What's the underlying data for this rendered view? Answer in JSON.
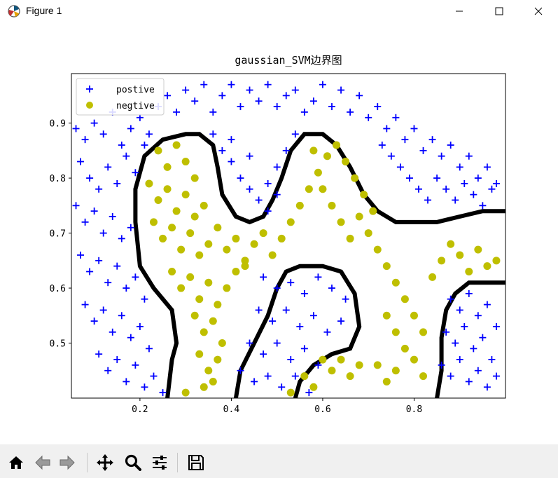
{
  "window": {
    "title": "Figure 1",
    "minimize_icon": "minimize-icon",
    "maximize_icon": "maximize-icon",
    "close_icon": "close-icon"
  },
  "toolbar": {
    "buttons": [
      "home-icon",
      "back-arrow-icon",
      "forward-arrow-icon",
      "pan-icon",
      "zoom-icon",
      "configure-subplots-icon",
      "save-icon"
    ]
  },
  "colors": {
    "positive": "#0000ff",
    "negative": "#bfbf00",
    "boundary": "#000000"
  },
  "chart_data": {
    "type": "scatter",
    "title": "gaussian_SVM边界图",
    "xlabel": "",
    "ylabel": "",
    "xlim": [
      0.05,
      1.0
    ],
    "ylim": [
      0.4,
      0.99
    ],
    "xticks": [
      "0.2",
      "0.4",
      "0.6",
      "0.8"
    ],
    "yticks": [
      "0.5",
      "0.6",
      "0.7",
      "0.8",
      "0.9"
    ],
    "xtick_values": [
      0.2,
      0.4,
      0.6,
      0.8
    ],
    "ytick_values": [
      0.5,
      0.6,
      0.7,
      0.8,
      0.9
    ],
    "legend": {
      "position": "top-left",
      "entries": [
        {
          "label": "postive",
          "marker": "plus"
        },
        {
          "label": "negtive",
          "marker": "circle"
        }
      ]
    },
    "grid": false,
    "series": [
      {
        "name": "postive",
        "marker": "plus",
        "points": [
          [
            0.06,
            0.89
          ],
          [
            0.08,
            0.87
          ],
          [
            0.1,
            0.9
          ],
          [
            0.12,
            0.88
          ],
          [
            0.14,
            0.92
          ],
          [
            0.16,
            0.86
          ],
          [
            0.18,
            0.89
          ],
          [
            0.2,
            0.91
          ],
          [
            0.22,
            0.88
          ],
          [
            0.24,
            0.93
          ],
          [
            0.26,
            0.95
          ],
          [
            0.28,
            0.92
          ],
          [
            0.3,
            0.96
          ],
          [
            0.32,
            0.94
          ],
          [
            0.34,
            0.97
          ],
          [
            0.36,
            0.92
          ],
          [
            0.38,
            0.95
          ],
          [
            0.4,
            0.97
          ],
          [
            0.42,
            0.93
          ],
          [
            0.44,
            0.96
          ],
          [
            0.46,
            0.94
          ],
          [
            0.48,
            0.97
          ],
          [
            0.5,
            0.93
          ],
          [
            0.52,
            0.95
          ],
          [
            0.54,
            0.96
          ],
          [
            0.56,
            0.92
          ],
          [
            0.58,
            0.94
          ],
          [
            0.6,
            0.97
          ],
          [
            0.62,
            0.93
          ],
          [
            0.64,
            0.96
          ],
          [
            0.66,
            0.92
          ],
          [
            0.68,
            0.95
          ],
          [
            0.7,
            0.91
          ],
          [
            0.72,
            0.93
          ],
          [
            0.74,
            0.89
          ],
          [
            0.76,
            0.91
          ],
          [
            0.78,
            0.87
          ],
          [
            0.8,
            0.89
          ],
          [
            0.82,
            0.85
          ],
          [
            0.84,
            0.87
          ],
          [
            0.86,
            0.84
          ],
          [
            0.88,
            0.86
          ],
          [
            0.9,
            0.82
          ],
          [
            0.92,
            0.84
          ],
          [
            0.94,
            0.8
          ],
          [
            0.96,
            0.82
          ],
          [
            0.98,
            0.79
          ],
          [
            0.07,
            0.83
          ],
          [
            0.09,
            0.8
          ],
          [
            0.11,
            0.78
          ],
          [
            0.13,
            0.82
          ],
          [
            0.15,
            0.79
          ],
          [
            0.17,
            0.84
          ],
          [
            0.19,
            0.81
          ],
          [
            0.21,
            0.86
          ],
          [
            0.06,
            0.75
          ],
          [
            0.08,
            0.72
          ],
          [
            0.1,
            0.74
          ],
          [
            0.12,
            0.7
          ],
          [
            0.14,
            0.73
          ],
          [
            0.16,
            0.69
          ],
          [
            0.18,
            0.71
          ],
          [
            0.07,
            0.66
          ],
          [
            0.09,
            0.63
          ],
          [
            0.11,
            0.65
          ],
          [
            0.13,
            0.61
          ],
          [
            0.15,
            0.64
          ],
          [
            0.17,
            0.6
          ],
          [
            0.19,
            0.62
          ],
          [
            0.21,
            0.58
          ],
          [
            0.08,
            0.57
          ],
          [
            0.1,
            0.54
          ],
          [
            0.12,
            0.56
          ],
          [
            0.14,
            0.52
          ],
          [
            0.16,
            0.55
          ],
          [
            0.18,
            0.51
          ],
          [
            0.2,
            0.53
          ],
          [
            0.22,
            0.49
          ],
          [
            0.11,
            0.48
          ],
          [
            0.13,
            0.45
          ],
          [
            0.15,
            0.47
          ],
          [
            0.17,
            0.43
          ],
          [
            0.19,
            0.46
          ],
          [
            0.21,
            0.42
          ],
          [
            0.23,
            0.44
          ],
          [
            0.25,
            0.41
          ],
          [
            0.36,
            0.88
          ],
          [
            0.38,
            0.85
          ],
          [
            0.4,
            0.83
          ],
          [
            0.42,
            0.8
          ],
          [
            0.44,
            0.78
          ],
          [
            0.46,
            0.76
          ],
          [
            0.48,
            0.79
          ],
          [
            0.5,
            0.82
          ],
          [
            0.52,
            0.85
          ],
          [
            0.54,
            0.88
          ],
          [
            0.4,
            0.87
          ],
          [
            0.44,
            0.84
          ],
          [
            0.48,
            0.74
          ],
          [
            0.5,
            0.77
          ],
          [
            0.47,
            0.62
          ],
          [
            0.5,
            0.6
          ],
          [
            0.53,
            0.61
          ],
          [
            0.56,
            0.59
          ],
          [
            0.59,
            0.62
          ],
          [
            0.62,
            0.6
          ],
          [
            0.65,
            0.58
          ],
          [
            0.46,
            0.56
          ],
          [
            0.49,
            0.54
          ],
          [
            0.52,
            0.56
          ],
          [
            0.55,
            0.53
          ],
          [
            0.58,
            0.55
          ],
          [
            0.61,
            0.52
          ],
          [
            0.64,
            0.54
          ],
          [
            0.44,
            0.5
          ],
          [
            0.47,
            0.48
          ],
          [
            0.5,
            0.5
          ],
          [
            0.53,
            0.47
          ],
          [
            0.56,
            0.49
          ],
          [
            0.59,
            0.46
          ],
          [
            0.42,
            0.45
          ],
          [
            0.45,
            0.43
          ],
          [
            0.48,
            0.44
          ],
          [
            0.51,
            0.42
          ],
          [
            0.54,
            0.44
          ],
          [
            0.57,
            0.41
          ],
          [
            0.88,
            0.58
          ],
          [
            0.9,
            0.56
          ],
          [
            0.92,
            0.59
          ],
          [
            0.94,
            0.55
          ],
          [
            0.96,
            0.57
          ],
          [
            0.98,
            0.53
          ],
          [
            0.87,
            0.52
          ],
          [
            0.89,
            0.5
          ],
          [
            0.91,
            0.53
          ],
          [
            0.93,
            0.49
          ],
          [
            0.95,
            0.51
          ],
          [
            0.97,
            0.47
          ],
          [
            0.86,
            0.46
          ],
          [
            0.88,
            0.44
          ],
          [
            0.9,
            0.47
          ],
          [
            0.92,
            0.43
          ],
          [
            0.94,
            0.45
          ],
          [
            0.96,
            0.42
          ],
          [
            0.98,
            0.44
          ],
          [
            0.73,
            0.86
          ],
          [
            0.75,
            0.84
          ],
          [
            0.77,
            0.82
          ],
          [
            0.79,
            0.8
          ],
          [
            0.81,
            0.78
          ],
          [
            0.83,
            0.76
          ],
          [
            0.85,
            0.8
          ],
          [
            0.87,
            0.78
          ],
          [
            0.89,
            0.76
          ],
          [
            0.91,
            0.79
          ],
          [
            0.93,
            0.77
          ],
          [
            0.95,
            0.75
          ],
          [
            0.97,
            0.78
          ]
        ]
      },
      {
        "name": "negtive",
        "marker": "circle",
        "points": [
          [
            0.24,
            0.85
          ],
          [
            0.26,
            0.82
          ],
          [
            0.28,
            0.86
          ],
          [
            0.3,
            0.83
          ],
          [
            0.32,
            0.8
          ],
          [
            0.22,
            0.79
          ],
          [
            0.24,
            0.76
          ],
          [
            0.26,
            0.78
          ],
          [
            0.28,
            0.74
          ],
          [
            0.3,
            0.77
          ],
          [
            0.32,
            0.73
          ],
          [
            0.34,
            0.75
          ],
          [
            0.23,
            0.72
          ],
          [
            0.25,
            0.69
          ],
          [
            0.27,
            0.71
          ],
          [
            0.29,
            0.67
          ],
          [
            0.31,
            0.7
          ],
          [
            0.33,
            0.66
          ],
          [
            0.35,
            0.68
          ],
          [
            0.37,
            0.71
          ],
          [
            0.39,
            0.67
          ],
          [
            0.41,
            0.69
          ],
          [
            0.43,
            0.65
          ],
          [
            0.45,
            0.68
          ],
          [
            0.47,
            0.7
          ],
          [
            0.49,
            0.66
          ],
          [
            0.51,
            0.69
          ],
          [
            0.53,
            0.72
          ],
          [
            0.55,
            0.75
          ],
          [
            0.57,
            0.78
          ],
          [
            0.59,
            0.81
          ],
          [
            0.61,
            0.84
          ],
          [
            0.63,
            0.86
          ],
          [
            0.65,
            0.83
          ],
          [
            0.67,
            0.8
          ],
          [
            0.69,
            0.77
          ],
          [
            0.71,
            0.74
          ],
          [
            0.58,
            0.85
          ],
          [
            0.6,
            0.78
          ],
          [
            0.62,
            0.75
          ],
          [
            0.64,
            0.72
          ],
          [
            0.66,
            0.69
          ],
          [
            0.68,
            0.73
          ],
          [
            0.7,
            0.7
          ],
          [
            0.72,
            0.67
          ],
          [
            0.74,
            0.64
          ],
          [
            0.76,
            0.61
          ],
          [
            0.78,
            0.58
          ],
          [
            0.8,
            0.55
          ],
          [
            0.82,
            0.52
          ],
          [
            0.84,
            0.62
          ],
          [
            0.86,
            0.65
          ],
          [
            0.88,
            0.68
          ],
          [
            0.9,
            0.66
          ],
          [
            0.92,
            0.63
          ],
          [
            0.94,
            0.67
          ],
          [
            0.96,
            0.64
          ],
          [
            0.98,
            0.65
          ],
          [
            0.27,
            0.63
          ],
          [
            0.29,
            0.6
          ],
          [
            0.31,
            0.62
          ],
          [
            0.33,
            0.58
          ],
          [
            0.35,
            0.61
          ],
          [
            0.37,
            0.57
          ],
          [
            0.39,
            0.6
          ],
          [
            0.41,
            0.63
          ],
          [
            0.43,
            0.64
          ],
          [
            0.32,
            0.55
          ],
          [
            0.34,
            0.52
          ],
          [
            0.36,
            0.54
          ],
          [
            0.38,
            0.5
          ],
          [
            0.33,
            0.48
          ],
          [
            0.35,
            0.45
          ],
          [
            0.37,
            0.47
          ],
          [
            0.34,
            0.42
          ],
          [
            0.36,
            0.43
          ],
          [
            0.3,
            0.41
          ],
          [
            0.74,
            0.55
          ],
          [
            0.76,
            0.52
          ],
          [
            0.78,
            0.49
          ],
          [
            0.72,
            0.46
          ],
          [
            0.74,
            0.43
          ],
          [
            0.76,
            0.45
          ],
          [
            0.8,
            0.47
          ],
          [
            0.82,
            0.44
          ],
          [
            0.6,
            0.47
          ],
          [
            0.62,
            0.45
          ],
          [
            0.64,
            0.47
          ],
          [
            0.66,
            0.44
          ],
          [
            0.68,
            0.46
          ],
          [
            0.56,
            0.44
          ],
          [
            0.58,
            0.42
          ],
          [
            0.53,
            0.41
          ]
        ]
      }
    ],
    "boundary": [
      [
        [
          0.26,
          0.4
        ],
        [
          0.27,
          0.47
        ],
        [
          0.28,
          0.5
        ],
        [
          0.27,
          0.56
        ],
        [
          0.23,
          0.6
        ],
        [
          0.2,
          0.64
        ],
        [
          0.19,
          0.72
        ],
        [
          0.19,
          0.78
        ],
        [
          0.21,
          0.84
        ],
        [
          0.25,
          0.87
        ],
        [
          0.3,
          0.88
        ],
        [
          0.33,
          0.88
        ],
        [
          0.36,
          0.86
        ],
        [
          0.37,
          0.82
        ],
        [
          0.38,
          0.77
        ],
        [
          0.41,
          0.73
        ],
        [
          0.44,
          0.72
        ],
        [
          0.47,
          0.73
        ],
        [
          0.49,
          0.76
        ],
        [
          0.51,
          0.8
        ],
        [
          0.53,
          0.85
        ],
        [
          0.56,
          0.88
        ],
        [
          0.6,
          0.88
        ],
        [
          0.63,
          0.86
        ],
        [
          0.66,
          0.82
        ],
        [
          0.69,
          0.77
        ],
        [
          0.72,
          0.74
        ],
        [
          0.76,
          0.72
        ],
        [
          0.8,
          0.72
        ],
        [
          0.85,
          0.72
        ],
        [
          0.9,
          0.73
        ],
        [
          0.95,
          0.74
        ],
        [
          1.0,
          0.74
        ]
      ],
      [
        [
          0.41,
          0.4
        ],
        [
          0.42,
          0.45
        ],
        [
          0.45,
          0.5
        ],
        [
          0.48,
          0.55
        ],
        [
          0.5,
          0.6
        ],
        [
          0.52,
          0.63
        ],
        [
          0.55,
          0.64
        ],
        [
          0.6,
          0.64
        ],
        [
          0.64,
          0.63
        ],
        [
          0.67,
          0.59
        ],
        [
          0.68,
          0.53
        ],
        [
          0.66,
          0.49
        ],
        [
          0.62,
          0.48
        ],
        [
          0.58,
          0.46
        ],
        [
          0.55,
          0.43
        ],
        [
          0.54,
          0.4
        ]
      ],
      [
        [
          0.85,
          0.4
        ],
        [
          0.86,
          0.45
        ],
        [
          0.86,
          0.51
        ],
        [
          0.87,
          0.56
        ],
        [
          0.89,
          0.59
        ],
        [
          0.92,
          0.61
        ],
        [
          0.96,
          0.61
        ],
        [
          1.0,
          0.61
        ]
      ]
    ]
  }
}
